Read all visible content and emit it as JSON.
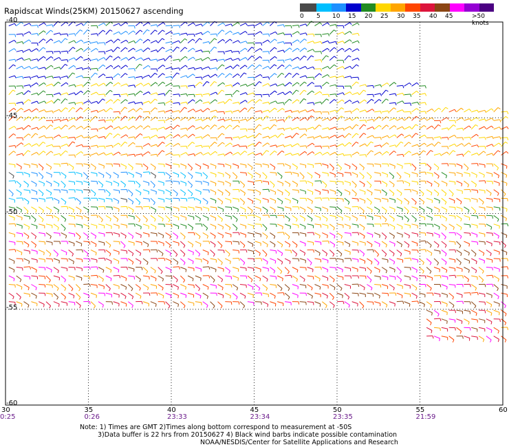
{
  "title": "Rapidscat Winds(25KM) 20150627 ascending",
  "colorbar": {
    "labels": [
      "0",
      "5",
      "10",
      "15",
      "20",
      "25",
      "30",
      "35",
      "40",
      "45",
      ">50 knots"
    ],
    "colors": [
      "#4a4a4a",
      "#00bfff",
      "#1e90ff",
      "#0000cd",
      "#228b22",
      "#ffd700",
      "#ffa500",
      "#ff4500",
      "#dc143c",
      "#8b4513",
      "#ff00ff",
      "#9400d3",
      "#4b0082"
    ]
  },
  "map": {
    "lat_labels": [
      "-40",
      "-45",
      "-50",
      "-55",
      "-60"
    ],
    "lon_labels": [
      "30",
      "35",
      "40",
      "45",
      "50",
      "55",
      "60"
    ],
    "time_labels": [
      "0:25",
      "0:26",
      "23:33",
      "23:34",
      "23:35",
      "21:59"
    ],
    "gridlines": "dotted"
  },
  "footer": {
    "line1": "Note: 1) Times are GMT 2)Times along bottom correspond to measurement at -50S",
    "line2": "3)Data buffer is 22 hrs from 20150627 4) Black wind barbs indicate possible contamination",
    "line3": "NOAA/NESDIS/Center for Satellite Applications and Research"
  }
}
